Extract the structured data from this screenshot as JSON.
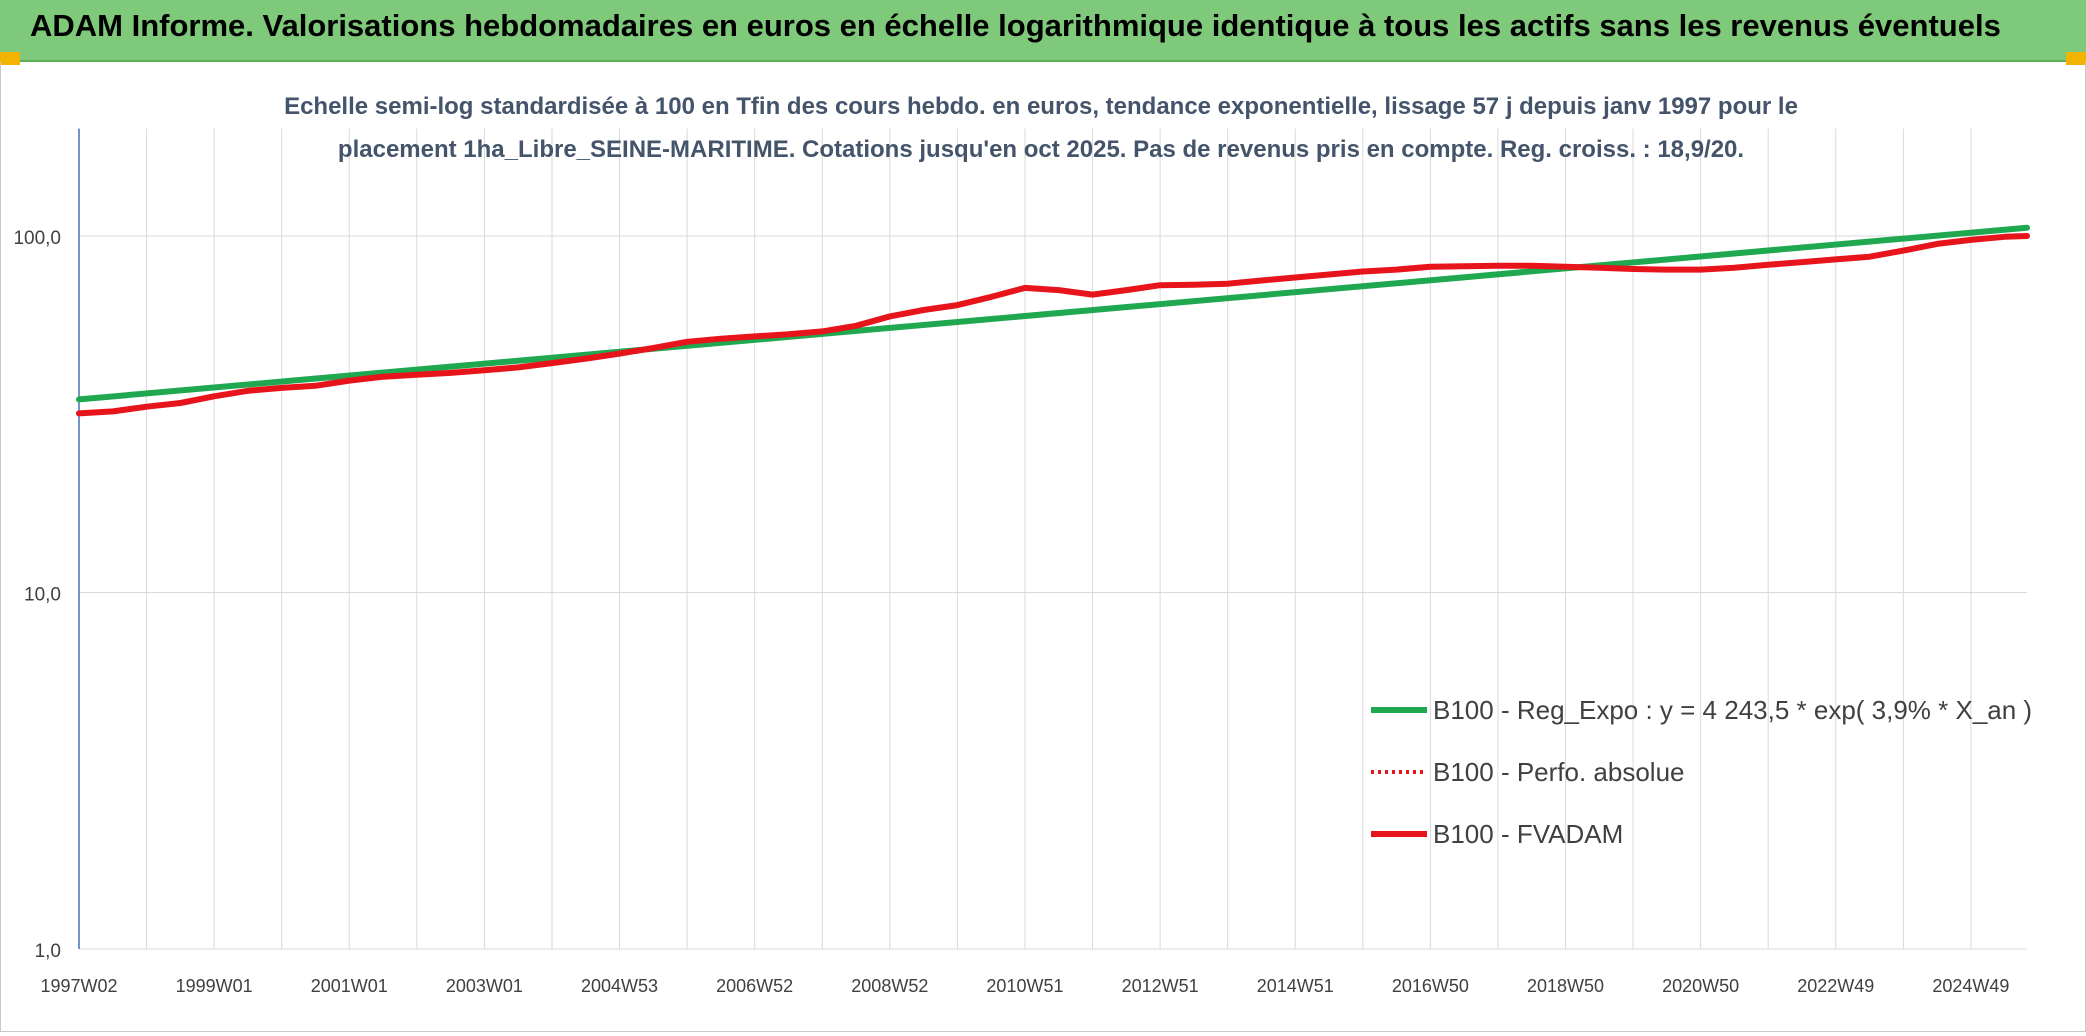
{
  "header": {
    "title": "ADAM Informe. Valorisations hebdomadaires en euros en échelle logarithmique identique à tous les actifs sans les revenus éventuels"
  },
  "colors": {
    "header_bg": "#7fc97a",
    "accent_corner": "#f2b400",
    "regression": "#1fa84f",
    "fvadam": "#e8141b",
    "perf_absolue": "#e8141b"
  },
  "chart_data": {
    "type": "line",
    "title_lines": [
      "Echelle semi-log standardisée à 100 en Tfin des cours hebdo. en euros, tendance exponentielle, lissage 57 j depuis janv 1997 pour le",
      "placement 1ha_Libre_SEINE-MARITIME. Cotations jusqu'en oct 2025. Pas de revenus pris en compte. Reg. croiss. : 18,9/20."
    ],
    "y_scale": "log",
    "ylim": [
      1,
      200
    ],
    "y_ticks": [
      {
        "value": 1,
        "label": "1,0"
      },
      {
        "value": 10,
        "label": "10,0"
      },
      {
        "value": 100,
        "label": "100,0"
      }
    ],
    "xlim": [
      1997.0,
      2025.83
    ],
    "x_ticks": [
      {
        "value": 1997.0,
        "label": "1997W02"
      },
      {
        "value": 1999.0,
        "label": "1999W01"
      },
      {
        "value": 2001.0,
        "label": "2001W01"
      },
      {
        "value": 2003.0,
        "label": "2003W01"
      },
      {
        "value": 2005.0,
        "label": "2004W53"
      },
      {
        "value": 2007.0,
        "label": "2006W52"
      },
      {
        "value": 2009.0,
        "label": "2008W52"
      },
      {
        "value": 2011.0,
        "label": "2010W51"
      },
      {
        "value": 2013.0,
        "label": "2012W51"
      },
      {
        "value": 2015.0,
        "label": "2014W51"
      },
      {
        "value": 2017.0,
        "label": "2016W50"
      },
      {
        "value": 2019.0,
        "label": "2018W50"
      },
      {
        "value": 2021.0,
        "label": "2020W50"
      },
      {
        "value": 2023.0,
        "label": "2022W49"
      },
      {
        "value": 2025.0,
        "label": "2024W49"
      }
    ],
    "grid": true,
    "legend_position": "right",
    "series": [
      {
        "name": "B100 - Reg_Expo : y = 4 243,5 * exp( 3,9% *  X_an )",
        "style": "line",
        "points": [
          [
            1997.0,
            34.8
          ],
          [
            2025.83,
            105.5
          ]
        ]
      },
      {
        "name": "B100 - Perfo. absolue",
        "style": "dotted",
        "points": [
          [
            1997.0,
            31.8
          ],
          [
            1997.5,
            32.2
          ],
          [
            1998.0,
            33.2
          ],
          [
            1998.5,
            34.0
          ],
          [
            1999.0,
            35.5
          ],
          [
            1999.5,
            36.8
          ],
          [
            2000.0,
            37.5
          ],
          [
            2000.5,
            38.0
          ],
          [
            2001.0,
            39.3
          ],
          [
            2001.5,
            40.3
          ],
          [
            2002.0,
            40.8
          ],
          [
            2002.5,
            41.3
          ],
          [
            2003.0,
            42.0
          ],
          [
            2003.5,
            42.8
          ],
          [
            2004.0,
            44.0
          ],
          [
            2004.5,
            45.3
          ],
          [
            2005.0,
            46.8
          ],
          [
            2005.5,
            48.5
          ],
          [
            2006.0,
            50.5
          ],
          [
            2006.5,
            51.5
          ],
          [
            2007.0,
            52.3
          ],
          [
            2007.5,
            53.0
          ],
          [
            2008.0,
            54.0
          ],
          [
            2008.5,
            56.0
          ],
          [
            2009.0,
            59.5
          ],
          [
            2009.5,
            62.0
          ],
          [
            2010.0,
            64.0
          ],
          [
            2010.5,
            67.5
          ],
          [
            2011.0,
            71.5
          ],
          [
            2011.5,
            70.5
          ],
          [
            2012.0,
            68.5
          ],
          [
            2012.5,
            70.5
          ],
          [
            2013.0,
            72.8
          ],
          [
            2013.5,
            73.0
          ],
          [
            2014.0,
            73.5
          ],
          [
            2014.5,
            75.0
          ],
          [
            2015.0,
            76.5
          ],
          [
            2015.5,
            78.0
          ],
          [
            2016.0,
            79.5
          ],
          [
            2016.5,
            80.5
          ],
          [
            2017.0,
            82.0
          ],
          [
            2017.5,
            82.3
          ],
          [
            2018.0,
            82.5
          ],
          [
            2018.5,
            82.5
          ],
          [
            2019.0,
            82.0
          ],
          [
            2019.5,
            81.5
          ],
          [
            2020.0,
            80.8
          ],
          [
            2020.5,
            80.5
          ],
          [
            2021.0,
            80.5
          ],
          [
            2021.5,
            81.5
          ],
          [
            2022.0,
            83.0
          ],
          [
            2022.5,
            84.5
          ],
          [
            2023.0,
            86.0
          ],
          [
            2023.5,
            87.5
          ],
          [
            2024.0,
            91.0
          ],
          [
            2024.5,
            95.0
          ],
          [
            2025.0,
            97.5
          ],
          [
            2025.5,
            99.5
          ],
          [
            2025.83,
            100.0
          ]
        ]
      },
      {
        "name": "B100 - FVADAM",
        "style": "line",
        "points": [
          [
            1997.0,
            31.8
          ],
          [
            1997.5,
            32.2
          ],
          [
            1998.0,
            33.2
          ],
          [
            1998.5,
            34.0
          ],
          [
            1999.0,
            35.5
          ],
          [
            1999.5,
            36.8
          ],
          [
            2000.0,
            37.5
          ],
          [
            2000.5,
            38.0
          ],
          [
            2001.0,
            39.3
          ],
          [
            2001.5,
            40.3
          ],
          [
            2002.0,
            40.8
          ],
          [
            2002.5,
            41.3
          ],
          [
            2003.0,
            42.0
          ],
          [
            2003.5,
            42.8
          ],
          [
            2004.0,
            44.0
          ],
          [
            2004.5,
            45.3
          ],
          [
            2005.0,
            46.8
          ],
          [
            2005.5,
            48.5
          ],
          [
            2006.0,
            50.5
          ],
          [
            2006.5,
            51.5
          ],
          [
            2007.0,
            52.3
          ],
          [
            2007.5,
            53.0
          ],
          [
            2008.0,
            54.0
          ],
          [
            2008.5,
            56.0
          ],
          [
            2009.0,
            59.5
          ],
          [
            2009.5,
            62.0
          ],
          [
            2010.0,
            64.0
          ],
          [
            2010.5,
            67.5
          ],
          [
            2011.0,
            71.5
          ],
          [
            2011.5,
            70.5
          ],
          [
            2012.0,
            68.5
          ],
          [
            2012.5,
            70.5
          ],
          [
            2013.0,
            72.8
          ],
          [
            2013.5,
            73.0
          ],
          [
            2014.0,
            73.5
          ],
          [
            2014.5,
            75.0
          ],
          [
            2015.0,
            76.5
          ],
          [
            2015.5,
            78.0
          ],
          [
            2016.0,
            79.5
          ],
          [
            2016.5,
            80.5
          ],
          [
            2017.0,
            82.0
          ],
          [
            2017.5,
            82.3
          ],
          [
            2018.0,
            82.5
          ],
          [
            2018.5,
            82.5
          ],
          [
            2019.0,
            82.0
          ],
          [
            2019.5,
            81.5
          ],
          [
            2020.0,
            80.8
          ],
          [
            2020.5,
            80.5
          ],
          [
            2021.0,
            80.5
          ],
          [
            2021.5,
            81.5
          ],
          [
            2022.0,
            83.0
          ],
          [
            2022.5,
            84.5
          ],
          [
            2023.0,
            86.0
          ],
          [
            2023.5,
            87.5
          ],
          [
            2024.0,
            91.0
          ],
          [
            2024.5,
            95.0
          ],
          [
            2025.0,
            97.5
          ],
          [
            2025.5,
            99.5
          ],
          [
            2025.83,
            100.0
          ]
        ]
      }
    ]
  }
}
